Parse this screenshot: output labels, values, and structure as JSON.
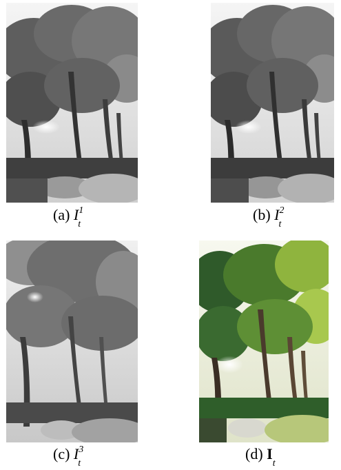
{
  "figure": {
    "panels": [
      {
        "id": "a",
        "prefix": "(a)",
        "symbol": "I",
        "subscript": "t",
        "superscript": "1",
        "bold": false,
        "image": "grayscale filtered tree and bushes scene"
      },
      {
        "id": "b",
        "prefix": "(b)",
        "symbol": "I",
        "subscript": "t",
        "superscript": "2",
        "bold": false,
        "image": "grayscale filtered tree and bushes scene"
      },
      {
        "id": "c",
        "prefix": "(c)",
        "symbol": "I",
        "subscript": "t",
        "superscript": "3",
        "bold": false,
        "image": "grayscale filtered tree and bushes scene"
      },
      {
        "id": "d",
        "prefix": "(d)",
        "symbol": "I",
        "subscript": "t",
        "superscript": "",
        "bold": true,
        "image": "color filtered tree and bushes scene"
      }
    ],
    "colors": {
      "gray_dark": "#3a3a3a",
      "gray_mid": "#7a7a7a",
      "gray_light": "#cfcfcf",
      "sky_gray": "#f2f2f2",
      "green_dark": "#2f5a2a",
      "green_mid": "#5e8f35",
      "green_light": "#a8c84e",
      "trunk_brown": "#4a3a2c",
      "sky_color": "#f7f8ef"
    }
  }
}
